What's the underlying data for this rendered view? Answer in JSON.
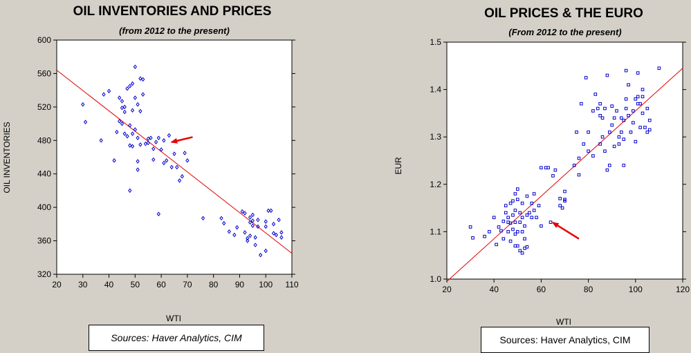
{
  "colors": {
    "background": "#d4d0c8",
    "plot_bg": "#ffffff",
    "points": "#0000cc",
    "fit_line": "#e00000",
    "arrow": "#e60000"
  },
  "chart_data": [
    {
      "type": "scatter",
      "title": "OIL INVENTORIES AND PRICES",
      "subtitle": "(from 2012 to the present)",
      "xlabel": "WTI",
      "ylabel": "OIL INVENTORIES",
      "xlim": [
        20,
        110
      ],
      "ylim": [
        320,
        600
      ],
      "xticks": [
        20,
        30,
        40,
        50,
        60,
        70,
        80,
        90,
        100,
        110
      ],
      "yticks": [
        320,
        360,
        400,
        440,
        480,
        520,
        560,
        600
      ],
      "grid": false,
      "marker": "diamond",
      "fit_line": {
        "x": [
          20,
          110
        ],
        "y": [
          564,
          345
        ]
      },
      "annotation": {
        "type": "arrow",
        "from": [
          72,
          484
        ],
        "to": [
          64,
          478
        ]
      },
      "points": [
        [
          30,
          523
        ],
        [
          31,
          502
        ],
        [
          37,
          480
        ],
        [
          38,
          535
        ],
        [
          40,
          539
        ],
        [
          42,
          456
        ],
        [
          43,
          490
        ],
        [
          44,
          503
        ],
        [
          44,
          531
        ],
        [
          45,
          519
        ],
        [
          45,
          527
        ],
        [
          45,
          500
        ],
        [
          46,
          514
        ],
        [
          46,
          520
        ],
        [
          46,
          488
        ],
        [
          47,
          542
        ],
        [
          47,
          485
        ],
        [
          48,
          420
        ],
        [
          48,
          545
        ],
        [
          48,
          474
        ],
        [
          48,
          498
        ],
        [
          49,
          548
        ],
        [
          49,
          488
        ],
        [
          49,
          516
        ],
        [
          49,
          473
        ],
        [
          50,
          568
        ],
        [
          50,
          493
        ],
        [
          50,
          531
        ],
        [
          51,
          455
        ],
        [
          51,
          483
        ],
        [
          51,
          445
        ],
        [
          51,
          523
        ],
        [
          52,
          554
        ],
        [
          52,
          475
        ],
        [
          52,
          515
        ],
        [
          53,
          535
        ],
        [
          53,
          553
        ],
        [
          54,
          476
        ],
        [
          55,
          482
        ],
        [
          55,
          477
        ],
        [
          56,
          483
        ],
        [
          57,
          470
        ],
        [
          57,
          457
        ],
        [
          58,
          478
        ],
        [
          59,
          483
        ],
        [
          59,
          392
        ],
        [
          60,
          469
        ],
        [
          61,
          453
        ],
        [
          61,
          480
        ],
        [
          62,
          456
        ],
        [
          63,
          486
        ],
        [
          64,
          448
        ],
        [
          65,
          464
        ],
        [
          66,
          448
        ],
        [
          67,
          432
        ],
        [
          68,
          437
        ],
        [
          69,
          465
        ],
        [
          70,
          456
        ],
        [
          76,
          387
        ],
        [
          83,
          387
        ],
        [
          84,
          381
        ],
        [
          86,
          371
        ],
        [
          88,
          367
        ],
        [
          89,
          376
        ],
        [
          91,
          395
        ],
        [
          92,
          393
        ],
        [
          92,
          370
        ],
        [
          93,
          363
        ],
        [
          93,
          360
        ],
        [
          94,
          388
        ],
        [
          94,
          382
        ],
        [
          94,
          366
        ],
        [
          95,
          378
        ],
        [
          95,
          384
        ],
        [
          95,
          391
        ],
        [
          96,
          364
        ],
        [
          96,
          355
        ],
        [
          97,
          377
        ],
        [
          97,
          385
        ],
        [
          98,
          343
        ],
        [
          100,
          377
        ],
        [
          100,
          383
        ],
        [
          100,
          348
        ],
        [
          101,
          396
        ],
        [
          102,
          396
        ],
        [
          103,
          369
        ],
        [
          103,
          380
        ],
        [
          104,
          367
        ],
        [
          105,
          385
        ],
        [
          106,
          370
        ],
        [
          106,
          364
        ]
      ]
    },
    {
      "type": "scatter",
      "title": "OIL PRICES & THE EURO",
      "subtitle": "(From 2012 to the present)",
      "xlabel": "WTI",
      "ylabel": "EUR",
      "xlim": [
        20,
        120
      ],
      "ylim": [
        1.0,
        1.5
      ],
      "xticks": [
        20,
        40,
        60,
        80,
        100,
        120
      ],
      "yticks": [
        1.0,
        1.1,
        1.2,
        1.3,
        1.4,
        1.5
      ],
      "tick_labels_y": [
        "1.0",
        "1.1",
        "1.2",
        "1.3",
        "1.4",
        "1.5"
      ],
      "grid": false,
      "marker": "square",
      "fit_line": {
        "x": [
          20,
          120
        ],
        "y": [
          0.995,
          1.445
        ]
      },
      "annotation": {
        "type": "arrow",
        "from": [
          76,
          1.085
        ],
        "to": [
          65,
          1.119
        ]
      },
      "points": [
        [
          30,
          1.11
        ],
        [
          31,
          1.087
        ],
        [
          36,
          1.09
        ],
        [
          38,
          1.1
        ],
        [
          40,
          1.13
        ],
        [
          41,
          1.073
        ],
        [
          42,
          1.11
        ],
        [
          43,
          1.102
        ],
        [
          44,
          1.122
        ],
        [
          44,
          1.085
        ],
        [
          45,
          1.14
        ],
        [
          45,
          1.155
        ],
        [
          46,
          1.12
        ],
        [
          46,
          1.13
        ],
        [
          46,
          1.1
        ],
        [
          47,
          1.16
        ],
        [
          47,
          1.118
        ],
        [
          47,
          1.08
        ],
        [
          48,
          1.165
        ],
        [
          48,
          1.135
        ],
        [
          48,
          1.105
        ],
        [
          49,
          1.18
        ],
        [
          49,
          1.145
        ],
        [
          49,
          1.12
        ],
        [
          49,
          1.095
        ],
        [
          49,
          1.07
        ],
        [
          50,
          1.19
        ],
        [
          50,
          1.168
        ],
        [
          50,
          1.1
        ],
        [
          50,
          1.07
        ],
        [
          51,
          1.14
        ],
        [
          51,
          1.12
        ],
        [
          51,
          1.06
        ],
        [
          52,
          1.16
        ],
        [
          52,
          1.13
        ],
        [
          52,
          1.1
        ],
        [
          52,
          1.055
        ],
        [
          53,
          1.112
        ],
        [
          53,
          1.085
        ],
        [
          53,
          1.065
        ],
        [
          54,
          1.175
        ],
        [
          54,
          1.135
        ],
        [
          54,
          1.068
        ],
        [
          55,
          1.14
        ],
        [
          56,
          1.16
        ],
        [
          56,
          1.13
        ],
        [
          57,
          1.18
        ],
        [
          57,
          1.145
        ],
        [
          58,
          1.13
        ],
        [
          59,
          1.155
        ],
        [
          60,
          1.235
        ],
        [
          60,
          1.112
        ],
        [
          62,
          1.235
        ],
        [
          63,
          1.235
        ],
        [
          64,
          1.12
        ],
        [
          65,
          1.218
        ],
        [
          66,
          1.23
        ],
        [
          68,
          1.17
        ],
        [
          68,
          1.155
        ],
        [
          69,
          1.15
        ],
        [
          70,
          1.185
        ],
        [
          70,
          1.165
        ],
        [
          70,
          1.168
        ],
        [
          74,
          1.24
        ],
        [
          75,
          1.31
        ],
        [
          76,
          1.255
        ],
        [
          76,
          1.22
        ],
        [
          77,
          1.37
        ],
        [
          78,
          1.285
        ],
        [
          79,
          1.425
        ],
        [
          80,
          1.31
        ],
        [
          80,
          1.27
        ],
        [
          82,
          1.355
        ],
        [
          82,
          1.26
        ],
        [
          83,
          1.39
        ],
        [
          84,
          1.36
        ],
        [
          85,
          1.37
        ],
        [
          85,
          1.345
        ],
        [
          85,
          1.285
        ],
        [
          86,
          1.34
        ],
        [
          86,
          1.3
        ],
        [
          87,
          1.36
        ],
        [
          87,
          1.27
        ],
        [
          88,
          1.23
        ],
        [
          88,
          1.43
        ],
        [
          89,
          1.31
        ],
        [
          89,
          1.24
        ],
        [
          90,
          1.365
        ],
        [
          90,
          1.325
        ],
        [
          91,
          1.28
        ],
        [
          91,
          1.34
        ],
        [
          92,
          1.355
        ],
        [
          93,
          1.3
        ],
        [
          93,
          1.285
        ],
        [
          94,
          1.31
        ],
        [
          94,
          1.34
        ],
        [
          95,
          1.24
        ],
        [
          95,
          1.335
        ],
        [
          95,
          1.295
        ],
        [
          96,
          1.36
        ],
        [
          96,
          1.44
        ],
        [
          96,
          1.38
        ],
        [
          97,
          1.345
        ],
        [
          97,
          1.41
        ],
        [
          98,
          1.31
        ],
        [
          99,
          1.355
        ],
        [
          99,
          1.33
        ],
        [
          100,
          1.29
        ],
        [
          100,
          1.38
        ],
        [
          101,
          1.37
        ],
        [
          101,
          1.385
        ],
        [
          101,
          1.435
        ],
        [
          102,
          1.37
        ],
        [
          102,
          1.32
        ],
        [
          103,
          1.4
        ],
        [
          103,
          1.385
        ],
        [
          103,
          1.35
        ],
        [
          104,
          1.32
        ],
        [
          105,
          1.31
        ],
        [
          105,
          1.36
        ],
        [
          106,
          1.335
        ],
        [
          106,
          1.315
        ],
        [
          110,
          1.445
        ]
      ]
    }
  ],
  "sources": [
    {
      "label": "Sources:  Haver Analytics, CIM"
    },
    {
      "label": "Sources:  Haver Analytics, CIM"
    }
  ]
}
